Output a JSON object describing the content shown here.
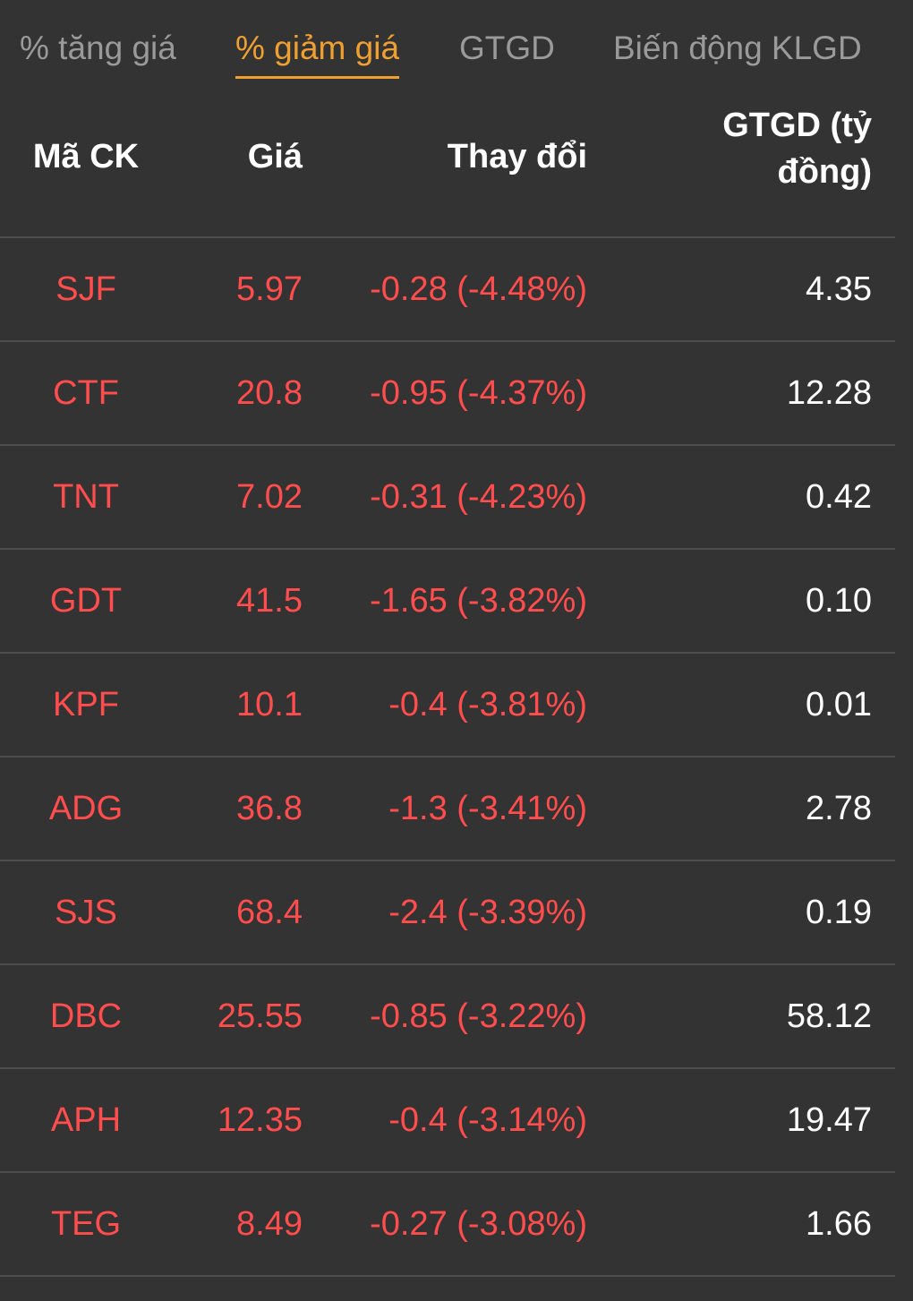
{
  "tabs": [
    {
      "label": "% tăng giá",
      "active": false
    },
    {
      "label": "% giảm giá",
      "active": true
    },
    {
      "label": "GTGD",
      "active": false
    },
    {
      "label": "Biến động KLGD",
      "active": false
    }
  ],
  "colors": {
    "background": "#333333",
    "active_tab": "#f0a030",
    "down": "#ff4d4d",
    "value": "#ffffff",
    "inactive_tab": "#9a9a9a"
  },
  "table": {
    "headers": {
      "symbol": "Mã CK",
      "price": "Giá",
      "change": "Thay đổi",
      "value": "GTGD (tỷ đồng)"
    },
    "rows": [
      {
        "symbol": "SJF",
        "price": "5.97",
        "change": "-0.28 (-4.48%)",
        "value": "4.35"
      },
      {
        "symbol": "CTF",
        "price": "20.8",
        "change": "-0.95 (-4.37%)",
        "value": "12.28"
      },
      {
        "symbol": "TNT",
        "price": "7.02",
        "change": "-0.31 (-4.23%)",
        "value": "0.42"
      },
      {
        "symbol": "GDT",
        "price": "41.5",
        "change": "-1.65 (-3.82%)",
        "value": "0.10"
      },
      {
        "symbol": "KPF",
        "price": "10.1",
        "change": "-0.4 (-3.81%)",
        "value": "0.01"
      },
      {
        "symbol": "ADG",
        "price": "36.8",
        "change": "-1.3 (-3.41%)",
        "value": "2.78"
      },
      {
        "symbol": "SJS",
        "price": "68.4",
        "change": "-2.4 (-3.39%)",
        "value": "0.19"
      },
      {
        "symbol": "DBC",
        "price": "25.55",
        "change": "-0.85 (-3.22%)",
        "value": "58.12"
      },
      {
        "symbol": "APH",
        "price": "12.35",
        "change": "-0.4 (-3.14%)",
        "value": "19.47"
      },
      {
        "symbol": "TEG",
        "price": "8.49",
        "change": "-0.27 (-3.08%)",
        "value": "1.66"
      }
    ]
  }
}
